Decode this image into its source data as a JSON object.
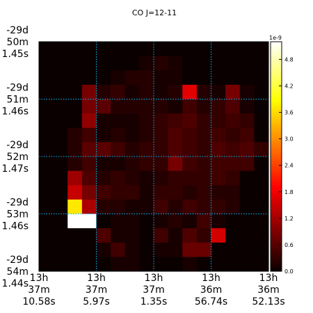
{
  "chart_data": {
    "type": "heatmap",
    "title": "CO J=12-11",
    "colormap": "hot",
    "grid": true,
    "grid_color": "#00bfff",
    "x_ticks": [
      {
        "lines": [
          "13h",
          "37m",
          "10.58s"
        ]
      },
      {
        "lines": [
          "13h",
          "37m",
          "5.97s"
        ]
      },
      {
        "lines": [
          "13h",
          "37m",
          "1.35s"
        ]
      },
      {
        "lines": [
          "13h",
          "36m",
          "56.74s"
        ]
      },
      {
        "lines": [
          "13h",
          "36m",
          "52.13s"
        ]
      }
    ],
    "y_ticks": [
      {
        "lines": [
          "-29d",
          "50m",
          "1.45s"
        ]
      },
      {
        "lines": [
          "-29d",
          "51m",
          "1.46s"
        ]
      },
      {
        "lines": [
          "-29d",
          "52m",
          "1.47s"
        ]
      },
      {
        "lines": [
          "-29d",
          "53m",
          "1.46s"
        ]
      },
      {
        "lines": [
          "-29d",
          "54m",
          "1.44s"
        ]
      }
    ],
    "colorbar": {
      "exponent_label": "1e-9",
      "min": 0.0,
      "max": 5.2,
      "ticks": [
        0.0,
        0.6,
        1.2,
        1.8,
        2.4,
        3.0,
        3.6,
        4.2,
        4.8
      ]
    },
    "grid_size": [
      16,
      16
    ],
    "values": [
      [
        0.0,
        0.0,
        0.0,
        0.0,
        0.0,
        0.0,
        0.0,
        0.0,
        0.0,
        0.0,
        0.0,
        0.0,
        0.0,
        0.0,
        0.0,
        0.0
      ],
      [
        0.0,
        0.0,
        0.0,
        0.0,
        0.0,
        0.0,
        0.0,
        0.1,
        0.2,
        0.1,
        0.0,
        0.0,
        0.0,
        0.0,
        0.0,
        0.0
      ],
      [
        0.0,
        0.0,
        0.0,
        0.0,
        0.0,
        0.1,
        0.2,
        0.2,
        0.1,
        0.1,
        0.0,
        0.0,
        0.0,
        0.0,
        0.0,
        0.0
      ],
      [
        0.0,
        0.0,
        0.0,
        0.8,
        0.2,
        0.3,
        0.1,
        0.2,
        0.1,
        0.2,
        1.6,
        0.2,
        0.1,
        0.8,
        0.1,
        0.0
      ],
      [
        0.0,
        0.0,
        0.0,
        0.8,
        0.6,
        0.2,
        0.2,
        0.2,
        0.2,
        0.1,
        0.4,
        0.2,
        0.3,
        0.5,
        0.1,
        0.0
      ],
      [
        0.0,
        0.0,
        0.0,
        1.0,
        0.1,
        0.1,
        0.1,
        0.2,
        0.3,
        0.4,
        0.5,
        0.3,
        0.3,
        0.4,
        0.3,
        0.0
      ],
      [
        0.0,
        0.0,
        0.2,
        0.4,
        0.1,
        0.2,
        0.1,
        0.2,
        0.3,
        0.5,
        0.4,
        0.3,
        0.4,
        0.3,
        0.4,
        0.0
      ],
      [
        0.0,
        0.0,
        0.2,
        0.6,
        0.6,
        0.4,
        0.2,
        0.3,
        0.3,
        0.5,
        0.4,
        0.3,
        0.5,
        0.4,
        0.5,
        0.3
      ],
      [
        0.0,
        0.0,
        0.2,
        0.4,
        0.1,
        0.1,
        0.2,
        0.3,
        0.3,
        0.8,
        0.4,
        0.3,
        0.4,
        0.4,
        0.4,
        0.0
      ],
      [
        0.0,
        0.0,
        1.1,
        0.5,
        0.2,
        0.3,
        0.2,
        0.1,
        0.2,
        0.3,
        0.3,
        0.3,
        0.4,
        0.3,
        0.0,
        0.0
      ],
      [
        0.0,
        0.0,
        1.4,
        0.8,
        0.4,
        0.3,
        0.3,
        0.1,
        0.3,
        0.3,
        0.2,
        0.3,
        0.2,
        0.2,
        0.0,
        0.0
      ],
      [
        0.0,
        0.0,
        3.7,
        1.2,
        0.2,
        0.2,
        0.1,
        0.1,
        0.4,
        0.2,
        0.4,
        0.3,
        0.3,
        0.2,
        0.0,
        0.0
      ],
      [
        0.0,
        0.0,
        5.2,
        5.2,
        0.0,
        0.1,
        0.1,
        0.0,
        0.1,
        0.2,
        0.1,
        0.4,
        0.1,
        0.0,
        0.0,
        0.0
      ],
      [
        0.0,
        0.0,
        0.0,
        0.0,
        0.5,
        0.1,
        0.1,
        0.0,
        0.4,
        0.1,
        0.5,
        0.3,
        1.5,
        0.0,
        0.0,
        0.0
      ],
      [
        0.0,
        0.0,
        0.0,
        0.0,
        0.1,
        0.4,
        0.1,
        0.0,
        0.1,
        0.1,
        0.7,
        0.7,
        0.0,
        0.0,
        0.0,
        0.0
      ],
      [
        0.0,
        0.0,
        0.0,
        0.0,
        0.0,
        0.1,
        0.1,
        0.0,
        0.0,
        0.0,
        0.1,
        0.0,
        0.0,
        0.0,
        0.0,
        0.0
      ]
    ]
  }
}
